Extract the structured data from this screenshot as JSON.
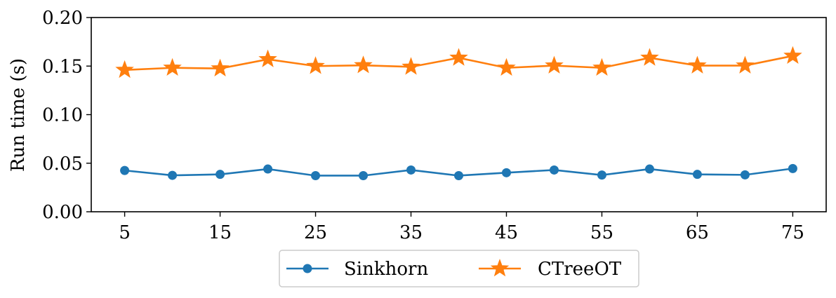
{
  "chart_data": {
    "type": "line",
    "title": "",
    "xlabel": "",
    "ylabel": "Run time (s)",
    "x": [
      5,
      10,
      15,
      20,
      25,
      30,
      35,
      40,
      45,
      50,
      55,
      60,
      65,
      70,
      75
    ],
    "xticks": [
      "5",
      "15",
      "25",
      "35",
      "45",
      "55",
      "65",
      "75"
    ],
    "xtick_values": [
      5,
      15,
      25,
      35,
      45,
      55,
      65,
      75
    ],
    "yticks": [
      "0.00",
      "0.05",
      "0.10",
      "0.15",
      "0.20"
    ],
    "ytick_values": [
      0.0,
      0.05,
      0.1,
      0.15,
      0.2
    ],
    "xlim": [
      1.5,
      78.5
    ],
    "ylim": [
      0.0,
      0.2
    ],
    "grid": false,
    "legend_position": "bottom-center",
    "series": [
      {
        "name": "Sinkhorn",
        "color": "#1f77b4",
        "marker": "circle",
        "values": [
          0.0425,
          0.0375,
          0.0385,
          0.044,
          0.0372,
          0.0372,
          0.043,
          0.0372,
          0.0402,
          0.043,
          0.0378,
          0.044,
          0.0385,
          0.038,
          0.0445
        ]
      },
      {
        "name": "CTreeOT",
        "color": "#ff7f0e",
        "marker": "star",
        "values": [
          0.146,
          0.1482,
          0.1475,
          0.157,
          0.15,
          0.1508,
          0.1492,
          0.1585,
          0.1482,
          0.1505,
          0.1482,
          0.1585,
          0.1505,
          0.1505,
          0.1605
        ]
      }
    ]
  }
}
